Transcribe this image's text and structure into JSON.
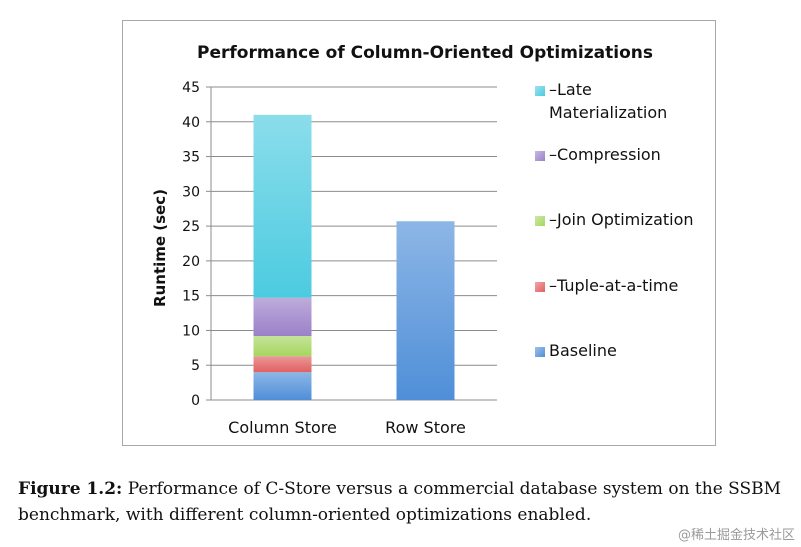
{
  "chart_data": {
    "type": "bar",
    "stacked": true,
    "title": "Performance of Column-Oriented Optimizations",
    "xlabel": "",
    "ylabel": "Runtime (sec)",
    "ylim": [
      0,
      45
    ],
    "yticks": [
      0,
      5,
      10,
      15,
      20,
      25,
      30,
      35,
      40,
      45
    ],
    "grid": true,
    "legend_position": "right",
    "categories": [
      "Column Store",
      "Row Store"
    ],
    "series": [
      {
        "name": "Baseline",
        "values": [
          4,
          25.7
        ],
        "color": "#4f8fd8"
      },
      {
        "name": "–Tuple-at-a-time",
        "values": [
          2.3,
          0
        ],
        "color": "#e06060"
      },
      {
        "name": "–Join Optimization",
        "values": [
          2.9,
          0
        ],
        "color": "#a6d660"
      },
      {
        "name": "–Compression",
        "values": [
          5.5,
          0
        ],
        "color": "#9b80c8"
      },
      {
        "name": "–Late Materialization",
        "values": [
          26.3,
          0
        ],
        "color": "#4ccbe0"
      }
    ],
    "legend_labels": [
      {
        "series": "–Late Materialization",
        "lines": [
          "–Late",
          "Materialization"
        ]
      },
      {
        "series": "–Compression",
        "lines": [
          "–Compression"
        ]
      },
      {
        "series": "–Join Optimization",
        "lines": [
          "–Join Optimization"
        ]
      },
      {
        "series": "–Tuple-at-a-time",
        "lines": [
          "–Tuple-at-a-time"
        ]
      },
      {
        "series": "Baseline",
        "lines": [
          "Baseline"
        ]
      }
    ]
  },
  "caption": {
    "label": "Figure 1.2:",
    "text": "Performance of C-Store versus a commercial database system on the SSBM benchmark, with different column-oriented optimizations enabled."
  },
  "watermark": "@稀土掘金技术社区"
}
